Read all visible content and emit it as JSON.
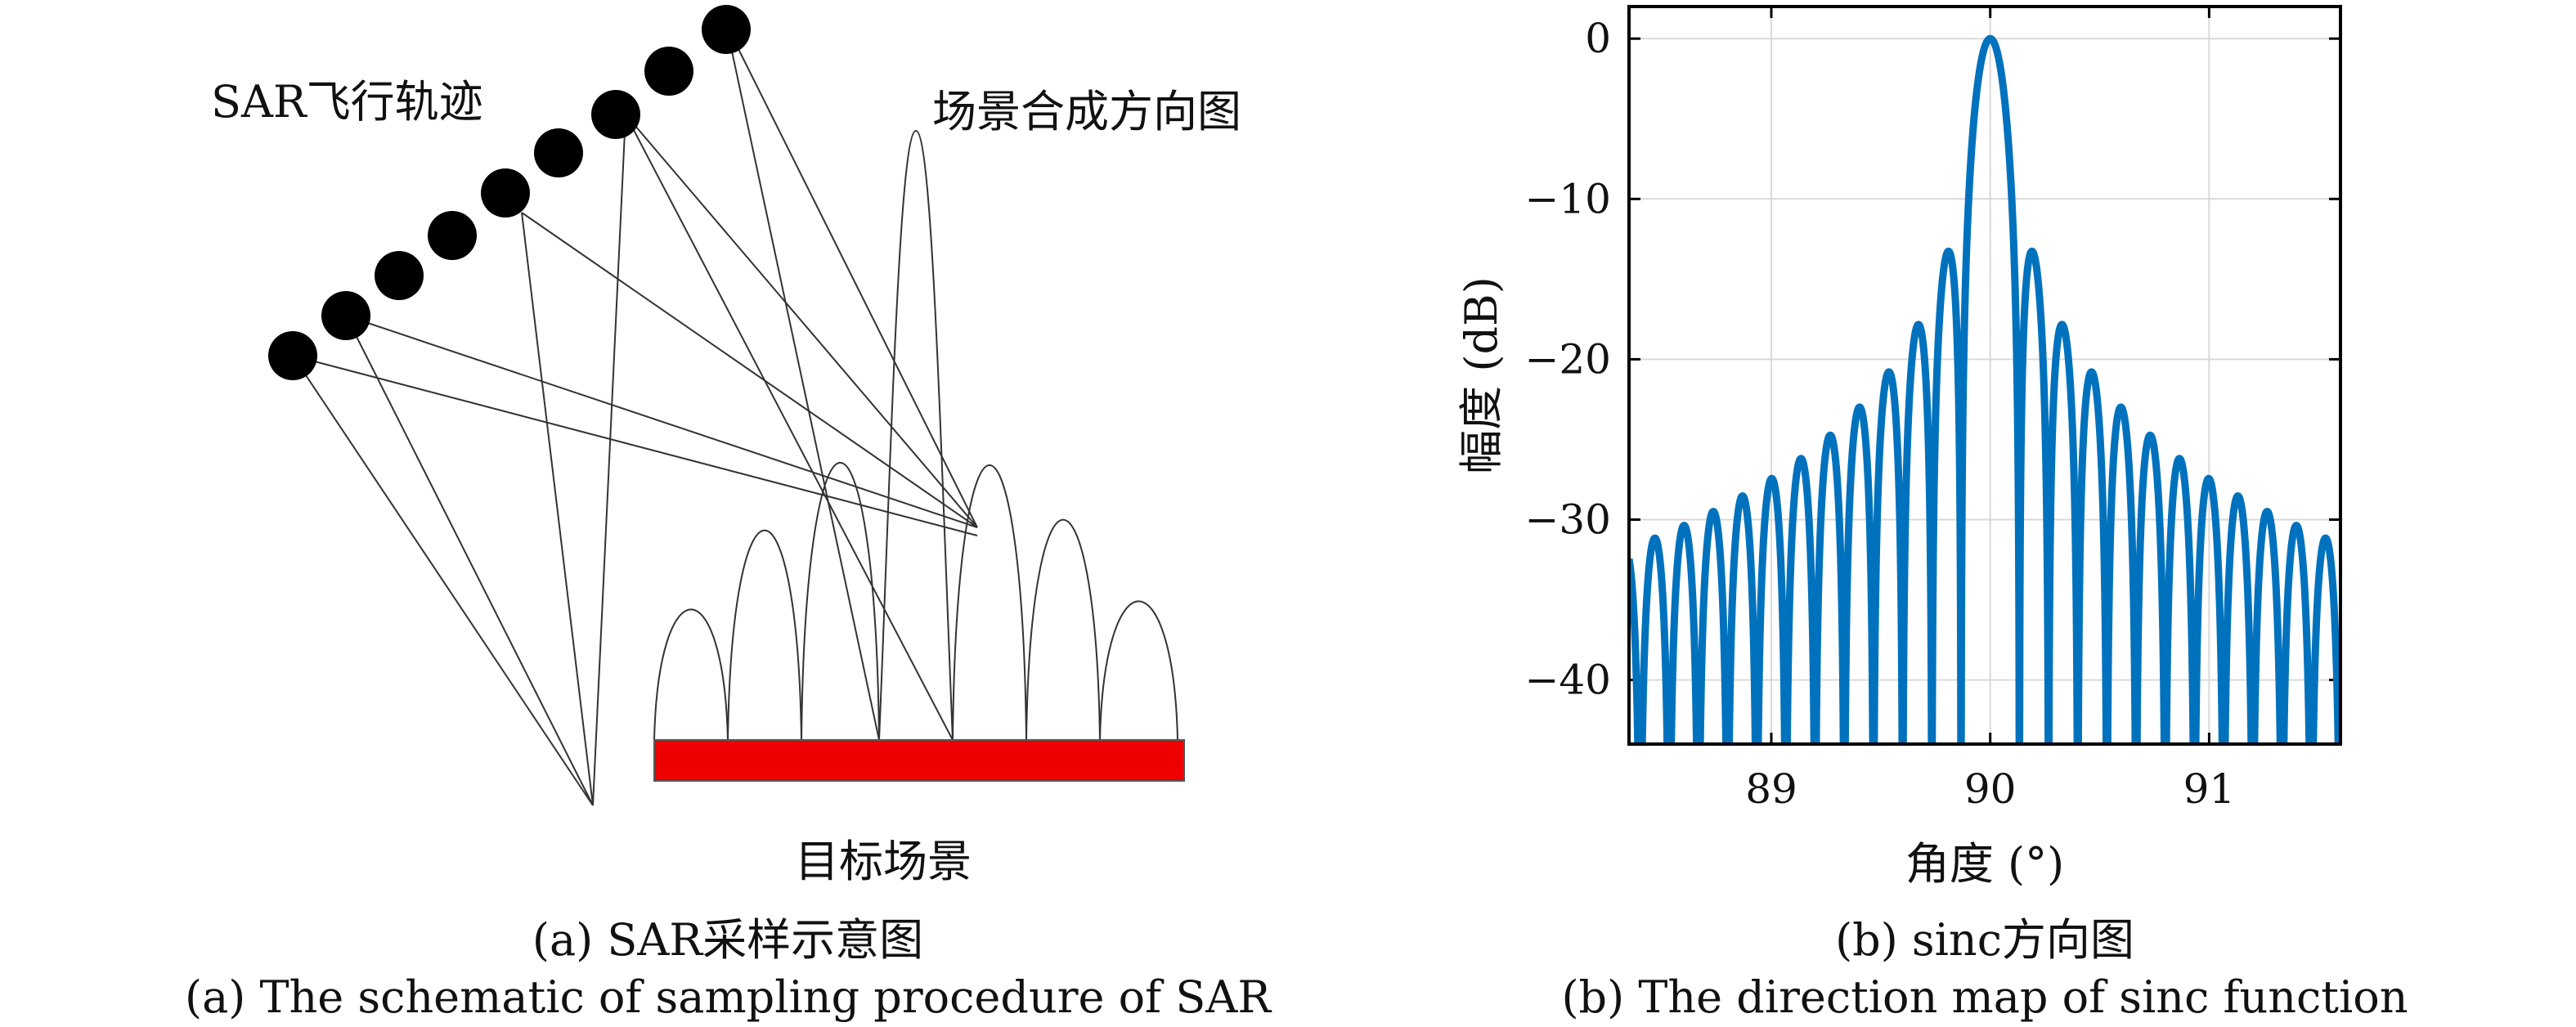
{
  "panel_a": {
    "labels": {
      "trajectory": "SAR飞行轨迹",
      "pattern": "场景合成方向图",
      "target": "目标场景"
    },
    "caption_cn": "(a) SAR采样示意图",
    "caption_en": "(a) The schematic of sampling procedure of SAR",
    "colors": {
      "satellite": "#000000",
      "target": "#ee0000",
      "lines": "#333333"
    }
  },
  "panel_b": {
    "caption_cn": "(b) sinc方向图",
    "caption_en": "(b) The direction map of sinc function"
  },
  "chart_data": {
    "type": "line",
    "title": "",
    "xlabel": "角度 (°)",
    "ylabel": "幅度 (dB)",
    "xlim": [
      88.35,
      91.6
    ],
    "ylim": [
      -44,
      2
    ],
    "xticks": [
      89,
      90,
      91
    ],
    "xtick_labels": [
      "89",
      "90",
      "91"
    ],
    "yticks": [
      0,
      -10,
      -20,
      -30,
      -40
    ],
    "ytick_labels": [
      "0",
      "−10",
      "−20",
      "−30",
      "−40"
    ],
    "grid": true,
    "series": [
      {
        "function": "20*log10(|sinc(7.5*(x-90))|)",
        "color": "#0072bd",
        "peak": {
          "x": 90,
          "y": 0
        },
        "first_sidelobe_db": -13.3,
        "null_spacing_deg": 0.1333
      }
    ]
  }
}
